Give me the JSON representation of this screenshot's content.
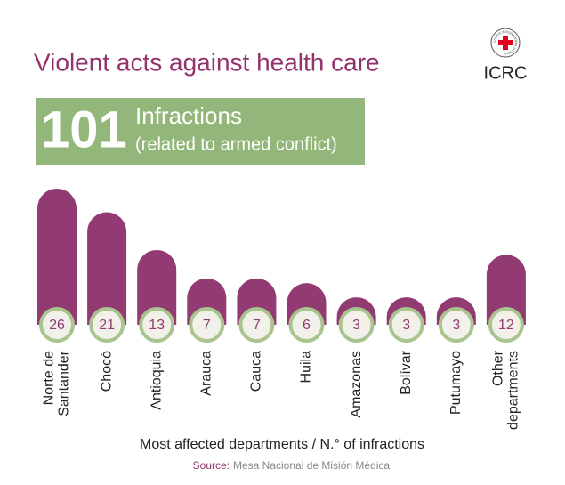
{
  "chart_data": {
    "type": "bar",
    "title": "Violent acts against health care",
    "total": 101,
    "total_label": "Infractions",
    "total_sublabel": "(related to armed conflict)",
    "logo": "ICRC",
    "logo_ring": "COMITÉ INTERNATIONAL GENÈVE",
    "categories": [
      [
        "Norte de",
        "Santander"
      ],
      [
        "Chocó"
      ],
      [
        "Antioquia"
      ],
      [
        "Arauca"
      ],
      [
        "Cauca"
      ],
      [
        "Huila"
      ],
      [
        "Amazonas"
      ],
      [
        "Bolívar"
      ],
      [
        "Putumayo"
      ],
      [
        "Other",
        "departments"
      ]
    ],
    "values": [
      26,
      21,
      13,
      7,
      7,
      6,
      3,
      3,
      3,
      12
    ],
    "color": "#923b72",
    "circle_stroke": "#a9c48e",
    "box_color": "#93b77a",
    "xlabel": "Most affected departments / N.° of infractions",
    "source_label": "Source:",
    "source": "Mesa Nacional de Misión Médica"
  }
}
